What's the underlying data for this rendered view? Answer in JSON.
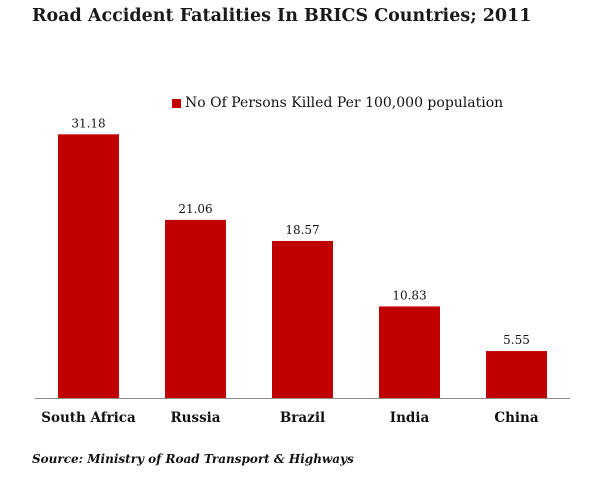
{
  "chart_data": {
    "type": "bar",
    "title": "Road Accident Fatalities In BRICS Countries; 2011",
    "categories": [
      "South Africa",
      "Russia",
      "Brazil",
      "India",
      "China"
    ],
    "series": [
      {
        "name": "No Of Persons Killed Per 100,000 population",
        "values": [
          31.18,
          21.06,
          18.57,
          10.83,
          5.55
        ],
        "labels": [
          "31.18",
          "21.06",
          "18.57",
          "10.83",
          "5.55"
        ],
        "color": "#c00000"
      }
    ],
    "ylim": [
      0,
      35
    ],
    "grid": false,
    "legend_position": "top",
    "xlabel": "",
    "ylabel": ""
  },
  "source": "Source: Ministry of Road Transport & Highways"
}
